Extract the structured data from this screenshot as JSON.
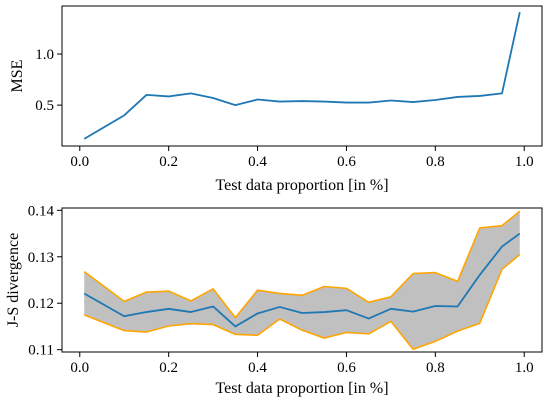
{
  "chart_data": [
    {
      "type": "line",
      "xlabel": "Test data proportion [in %]",
      "ylabel": "MSE",
      "xlim": [
        -0.04,
        1.04
      ],
      "ylim": [
        0.1,
        1.47
      ],
      "xticks": [
        0.0,
        0.2,
        0.4,
        0.6,
        0.8,
        1.0
      ],
      "xtick_labels": [
        "0.0",
        "0.2",
        "0.4",
        "0.6",
        "0.8",
        "1.0"
      ],
      "yticks": [
        0.5,
        1.0
      ],
      "ytick_labels": [
        "0.5",
        "1.0"
      ],
      "grid": false,
      "colors": {
        "line": "#1f77b4"
      },
      "x": [
        0.01,
        0.1,
        0.15,
        0.2,
        0.25,
        0.3,
        0.35,
        0.4,
        0.45,
        0.5,
        0.55,
        0.6,
        0.65,
        0.7,
        0.75,
        0.8,
        0.85,
        0.9,
        0.95,
        0.99
      ],
      "series": [
        {
          "values": [
            0.17,
            0.4,
            0.6,
            0.585,
            0.615,
            0.57,
            0.5,
            0.555,
            0.535,
            0.54,
            0.535,
            0.525,
            0.525,
            0.545,
            0.53,
            0.55,
            0.58,
            0.59,
            0.615,
            1.41
          ]
        }
      ]
    },
    {
      "type": "area",
      "xlabel": "Test data proportion [in %]",
      "ylabel": "J-S divergence",
      "xlim": [
        -0.04,
        1.04
      ],
      "ylim": [
        0.1095,
        0.1405
      ],
      "xticks": [
        0.0,
        0.2,
        0.4,
        0.6,
        0.8,
        1.0
      ],
      "xtick_labels": [
        "0.0",
        "0.2",
        "0.4",
        "0.6",
        "0.8",
        "1.0"
      ],
      "yticks": [
        0.11,
        0.12,
        0.13,
        0.14
      ],
      "ytick_labels": [
        "0.11",
        "0.12",
        "0.13",
        "0.14"
      ],
      "grid": false,
      "colors": {
        "mean": "#1f77b4",
        "bounds": "#ffa500",
        "band": "#c0c0c0"
      },
      "x": [
        0.01,
        0.1,
        0.15,
        0.2,
        0.25,
        0.3,
        0.35,
        0.4,
        0.45,
        0.5,
        0.55,
        0.6,
        0.65,
        0.7,
        0.75,
        0.8,
        0.85,
        0.9,
        0.95,
        0.99
      ],
      "series": [
        {
          "role": "upper",
          "values": [
            0.1268,
            0.1204,
            0.1224,
            0.1226,
            0.1205,
            0.1231,
            0.1169,
            0.1228,
            0.1221,
            0.1217,
            0.1236,
            0.1232,
            0.1202,
            0.1214,
            0.1264,
            0.1266,
            0.1247,
            0.1362,
            0.1367,
            0.1398
          ]
        },
        {
          "role": "mean",
          "values": [
            0.1221,
            0.1172,
            0.1181,
            0.1188,
            0.1181,
            0.1193,
            0.115,
            0.1178,
            0.1192,
            0.1179,
            0.1181,
            0.1185,
            0.1167,
            0.1188,
            0.1182,
            0.1194,
            0.1193,
            0.1261,
            0.1322,
            0.135
          ]
        },
        {
          "role": "lower",
          "values": [
            0.1175,
            0.1141,
            0.1138,
            0.1151,
            0.1156,
            0.1154,
            0.1133,
            0.1131,
            0.1166,
            0.1142,
            0.1125,
            0.1137,
            0.1134,
            0.1161,
            0.1101,
            0.1118,
            0.114,
            0.1157,
            0.1273,
            0.1305
          ]
        }
      ]
    }
  ]
}
